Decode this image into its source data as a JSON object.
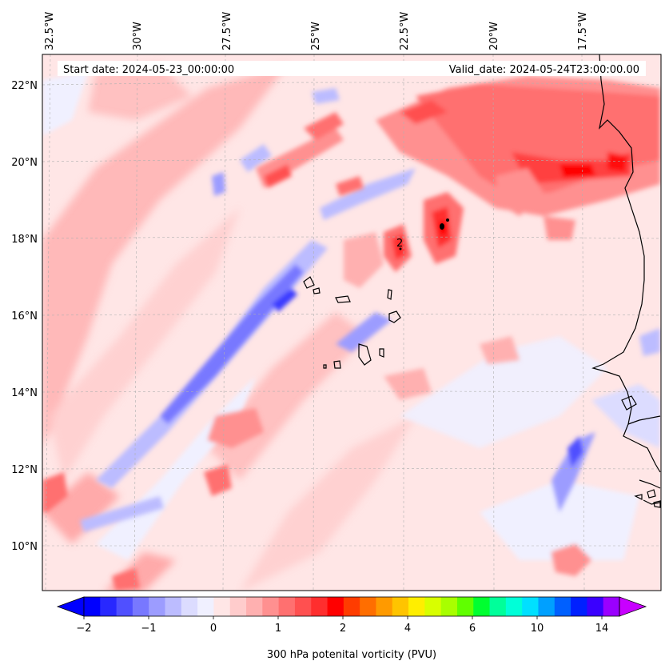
{
  "map": {
    "start_date": "Start date: 2024-05-23_00:00:00",
    "valid_date": "Valid_date: 2024-05-24T23:00:00.00",
    "lon_labels": [
      "32.5°W",
      "30°W",
      "27.5°W",
      "25°W",
      "22.5°W",
      "20°W",
      "17.5°W"
    ],
    "lat_labels": [
      "22°N",
      "20°N",
      "18°N",
      "16°N",
      "14°N",
      "12°N",
      "10°N"
    ],
    "contour_label": "2"
  },
  "colorbar": {
    "title": "300 hPa potenital vorticity (PVU)",
    "tick_labels": [
      "−2",
      "−1",
      "0",
      "1",
      "2",
      "4",
      "6",
      "10",
      "14"
    ],
    "colors": [
      "#0000ff",
      "#2828ff",
      "#5050ff",
      "#7878ff",
      "#9c9cff",
      "#bcbcff",
      "#dcdcff",
      "#f0f0ff",
      "#ffe6e6",
      "#ffcccc",
      "#ffb0b0",
      "#ff9090",
      "#ff7070",
      "#ff5050",
      "#ff2e2e",
      "#ff0000",
      "#ff3c00",
      "#ff6e00",
      "#ff9a00",
      "#ffc400",
      "#ffee00",
      "#d8ff00",
      "#a8ff00",
      "#60ff00",
      "#00ff30",
      "#00ff9a",
      "#00ffd8",
      "#00e0ff",
      "#00a0ff",
      "#0060ff",
      "#0020ff",
      "#3a00ff",
      "#9a00ff"
    ],
    "end_low": "#0000ff",
    "end_high": "#c800ff"
  },
  "colors": {
    "land_outline": "#000000",
    "grid": "#b0b0b0"
  }
}
